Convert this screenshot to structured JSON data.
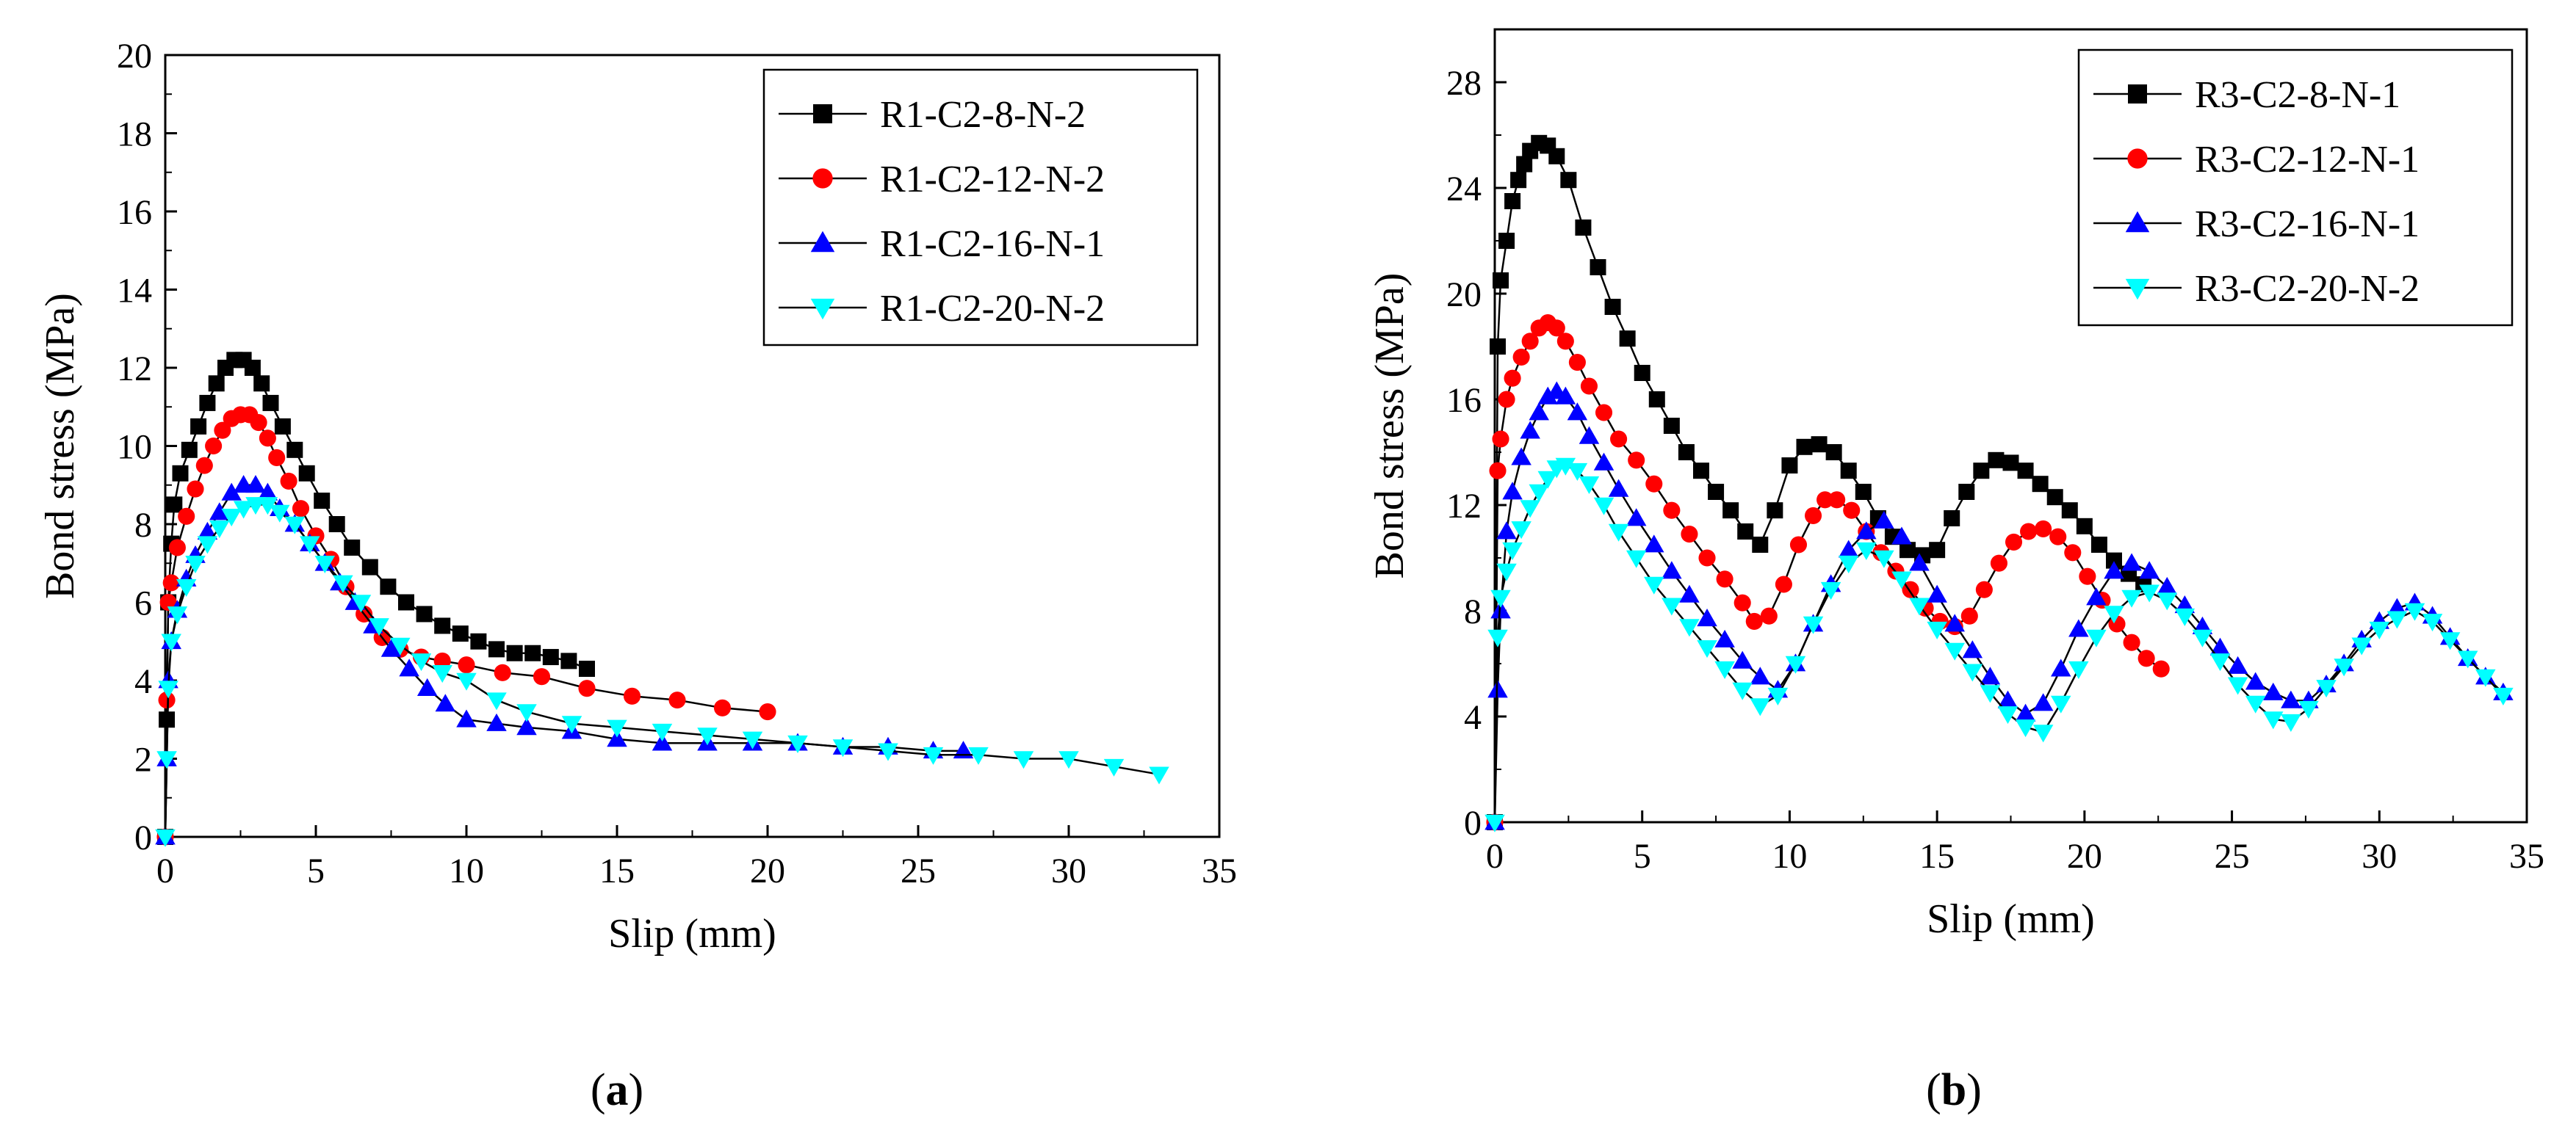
{
  "chart_data": [
    {
      "type": "line",
      "caption": "(a)",
      "caption_letter": "a",
      "xlabel": "Slip (mm)",
      "ylabel": "Bond stress (MPa)",
      "xlim": [
        0,
        35
      ],
      "ylim": [
        0,
        20
      ],
      "xticks": [
        0,
        5,
        10,
        15,
        20,
        25,
        30,
        35
      ],
      "yticks": [
        0,
        2,
        4,
        6,
        8,
        10,
        12,
        14,
        16,
        18,
        20
      ],
      "grid": false,
      "legend_position": "top-right",
      "series": [
        {
          "name": "R1-C2-8-N-2",
          "marker": "square",
          "color": "#000000",
          "x": [
            0,
            0.05,
            0.1,
            0.2,
            0.3,
            0.5,
            0.8,
            1.1,
            1.4,
            1.7,
            2.0,
            2.3,
            2.6,
            2.9,
            3.2,
            3.5,
            3.9,
            4.3,
            4.7,
            5.2,
            5.7,
            6.2,
            6.8,
            7.4,
            8.0,
            8.6,
            9.2,
            9.8,
            10.4,
            11.0,
            11.6,
            12.2,
            12.8,
            13.4,
            14.0
          ],
          "y": [
            0,
            3.0,
            6.0,
            7.5,
            8.5,
            9.3,
            9.9,
            10.5,
            11.1,
            11.6,
            12.0,
            12.2,
            12.2,
            12.0,
            11.6,
            11.1,
            10.5,
            9.9,
            9.3,
            8.6,
            8.0,
            7.4,
            6.9,
            6.4,
            6.0,
            5.7,
            5.4,
            5.2,
            5.0,
            4.8,
            4.7,
            4.7,
            4.6,
            4.5,
            4.3
          ]
        },
        {
          "name": "R1-C2-12-N-2",
          "marker": "circle",
          "color": "#ff0000",
          "x": [
            0,
            0.05,
            0.1,
            0.2,
            0.4,
            0.7,
            1.0,
            1.3,
            1.6,
            1.9,
            2.2,
            2.5,
            2.8,
            3.1,
            3.4,
            3.7,
            4.1,
            4.5,
            5.0,
            5.5,
            6.0,
            6.6,
            7.2,
            7.8,
            8.5,
            9.2,
            10.0,
            11.2,
            12.5,
            14.0,
            15.5,
            17.0,
            18.5,
            20.0
          ],
          "y": [
            0,
            3.5,
            6.0,
            6.5,
            7.4,
            8.2,
            8.9,
            9.5,
            10.0,
            10.4,
            10.7,
            10.8,
            10.8,
            10.6,
            10.2,
            9.7,
            9.1,
            8.4,
            7.7,
            7.1,
            6.4,
            5.7,
            5.1,
            4.8,
            4.6,
            4.5,
            4.4,
            4.2,
            4.1,
            3.8,
            3.6,
            3.5,
            3.3,
            3.2
          ]
        },
        {
          "name": "R1-C2-16-N-1",
          "marker": "triangle-up",
          "color": "#0000ff",
          "x": [
            0,
            0.05,
            0.1,
            0.2,
            0.4,
            0.7,
            1.0,
            1.4,
            1.8,
            2.2,
            2.6,
            3.0,
            3.4,
            3.8,
            4.3,
            4.8,
            5.3,
            5.8,
            6.3,
            6.9,
            7.5,
            8.1,
            8.7,
            9.3,
            10.0,
            11.0,
            12.0,
            13.5,
            15.0,
            16.5,
            18.0,
            19.5,
            21.0,
            22.5,
            24.0,
            25.5,
            26.5
          ],
          "y": [
            0,
            2.0,
            4.0,
            5.0,
            5.8,
            6.6,
            7.2,
            7.8,
            8.3,
            8.8,
            9.0,
            9.0,
            8.8,
            8.4,
            8.0,
            7.5,
            7.0,
            6.5,
            6.0,
            5.4,
            4.8,
            4.3,
            3.8,
            3.4,
            3.0,
            2.9,
            2.8,
            2.7,
            2.5,
            2.4,
            2.4,
            2.4,
            2.4,
            2.3,
            2.3,
            2.2,
            2.2
          ]
        },
        {
          "name": "R1-C2-20-N-2",
          "marker": "triangle-down",
          "color": "#00ffff",
          "x": [
            0,
            0.05,
            0.1,
            0.2,
            0.4,
            0.7,
            1.0,
            1.4,
            1.8,
            2.2,
            2.6,
            3.0,
            3.4,
            3.8,
            4.3,
            4.8,
            5.3,
            5.9,
            6.5,
            7.1,
            7.8,
            8.5,
            9.2,
            10.0,
            11.0,
            12.0,
            13.5,
            15.0,
            16.5,
            18.0,
            19.5,
            21.0,
            22.5,
            24.0,
            25.5,
            27.0,
            28.5,
            30.0,
            31.5,
            33.0
          ],
          "y": [
            0,
            2.0,
            3.8,
            5.0,
            5.7,
            6.4,
            7.0,
            7.5,
            7.9,
            8.2,
            8.4,
            8.5,
            8.5,
            8.3,
            8.0,
            7.5,
            7.0,
            6.5,
            6.0,
            5.4,
            4.9,
            4.5,
            4.2,
            4.0,
            3.5,
            3.2,
            2.9,
            2.8,
            2.7,
            2.6,
            2.5,
            2.4,
            2.3,
            2.2,
            2.1,
            2.1,
            2.0,
            2.0,
            1.8,
            1.6
          ]
        }
      ]
    },
    {
      "type": "line",
      "caption": "(b)",
      "caption_letter": "b",
      "xlabel": "Slip (mm)",
      "ylabel": "Bond stress (MPa)",
      "xlim": [
        0,
        35
      ],
      "ylim": [
        0,
        30
      ],
      "xticks": [
        0,
        5,
        10,
        15,
        20,
        25,
        30,
        35
      ],
      "yticks": [
        0,
        4,
        8,
        12,
        16,
        20,
        24,
        28
      ],
      "grid": false,
      "legend_position": "top-right",
      "series": [
        {
          "name": "R3-C2-8-N-1",
          "marker": "square",
          "color": "#000000",
          "x": [
            0,
            0.1,
            0.2,
            0.4,
            0.6,
            0.8,
            1.0,
            1.2,
            1.5,
            1.8,
            2.1,
            2.5,
            3.0,
            3.5,
            4.0,
            4.5,
            5.0,
            5.5,
            6.0,
            6.5,
            7.0,
            7.5,
            8.0,
            8.5,
            9.0,
            9.5,
            10.0,
            10.5,
            11.0,
            11.5,
            12.0,
            12.5,
            13.0,
            13.5,
            14.0,
            14.5,
            15.0,
            15.5,
            16.0,
            16.5,
            17.0,
            17.5,
            18.0,
            18.5,
            19.0,
            19.5,
            20.0,
            20.5,
            21.0,
            21.5,
            22.0
          ],
          "y": [
            0,
            18.0,
            20.5,
            22.0,
            23.5,
            24.3,
            24.9,
            25.4,
            25.7,
            25.6,
            25.2,
            24.3,
            22.5,
            21.0,
            19.5,
            18.3,
            17.0,
            16.0,
            15.0,
            14.0,
            13.3,
            12.5,
            11.8,
            11.0,
            10.5,
            11.8,
            13.5,
            14.2,
            14.3,
            14.0,
            13.3,
            12.5,
            11.5,
            10.8,
            10.3,
            10.1,
            10.3,
            11.5,
            12.5,
            13.3,
            13.7,
            13.6,
            13.3,
            12.8,
            12.3,
            11.8,
            11.2,
            10.5,
            9.9,
            9.4,
            9.0
          ]
        },
        {
          "name": "R3-C2-12-N-1",
          "marker": "circle",
          "color": "#ff0000",
          "x": [
            0,
            0.1,
            0.2,
            0.4,
            0.6,
            0.9,
            1.2,
            1.5,
            1.8,
            2.1,
            2.4,
            2.8,
            3.2,
            3.7,
            4.2,
            4.8,
            5.4,
            6.0,
            6.6,
            7.2,
            7.8,
            8.4,
            8.8,
            9.3,
            9.8,
            10.3,
            10.8,
            11.2,
            11.6,
            12.1,
            12.6,
            13.1,
            13.6,
            14.1,
            14.6,
            15.1,
            15.6,
            16.1,
            16.6,
            17.1,
            17.6,
            18.1,
            18.6,
            19.1,
            19.6,
            20.1,
            20.6,
            21.1,
            21.6,
            22.1,
            22.6
          ],
          "y": [
            0,
            13.3,
            14.5,
            16.0,
            16.8,
            17.6,
            18.2,
            18.7,
            18.9,
            18.7,
            18.2,
            17.4,
            16.5,
            15.5,
            14.5,
            13.7,
            12.8,
            11.8,
            10.9,
            10.0,
            9.2,
            8.3,
            7.6,
            7.8,
            9.0,
            10.5,
            11.6,
            12.2,
            12.2,
            11.8,
            11.0,
            10.2,
            9.5,
            8.8,
            8.1,
            7.6,
            7.4,
            7.8,
            8.8,
            9.8,
            10.6,
            11.0,
            11.1,
            10.8,
            10.2,
            9.3,
            8.4,
            7.5,
            6.8,
            6.2,
            5.8
          ]
        },
        {
          "name": "R3-C2-16-N-1",
          "marker": "triangle-up",
          "color": "#0000ff",
          "x": [
            0,
            0.1,
            0.2,
            0.4,
            0.6,
            0.9,
            1.2,
            1.5,
            1.8,
            2.1,
            2.4,
            2.8,
            3.2,
            3.7,
            4.2,
            4.8,
            5.4,
            6.0,
            6.6,
            7.2,
            7.8,
            8.4,
            9.0,
            9.6,
            10.2,
            10.8,
            11.4,
            12.0,
            12.6,
            13.2,
            13.8,
            14.4,
            15.0,
            15.6,
            16.2,
            16.8,
            17.4,
            18.0,
            18.6,
            19.2,
            19.8,
            20.4,
            21.0,
            21.6,
            22.2,
            22.8,
            23.4,
            24.0,
            24.6,
            25.2,
            25.8,
            26.4,
            27.0,
            27.6,
            28.2,
            28.8,
            29.4,
            30.0,
            30.6,
            31.2,
            31.8,
            32.4,
            33.0,
            33.6,
            34.2
          ],
          "y": [
            0,
            5.0,
            8.0,
            11.0,
            12.5,
            13.8,
            14.8,
            15.5,
            16.1,
            16.3,
            16.1,
            15.5,
            14.6,
            13.6,
            12.6,
            11.5,
            10.5,
            9.5,
            8.6,
            7.7,
            6.9,
            6.1,
            5.5,
            5.0,
            6.0,
            7.5,
            9.0,
            10.3,
            11.0,
            11.4,
            10.8,
            9.8,
            8.6,
            7.5,
            6.5,
            5.5,
            4.6,
            4.1,
            4.5,
            5.8,
            7.3,
            8.5,
            9.5,
            9.8,
            9.5,
            8.9,
            8.2,
            7.4,
            6.6,
            5.9,
            5.3,
            4.9,
            4.6,
            4.6,
            5.2,
            6.0,
            6.9,
            7.6,
            8.1,
            8.3,
            7.8,
            7.0,
            6.2,
            5.5,
            4.9
          ]
        },
        {
          "name": "R3-C2-20-N-2",
          "marker": "triangle-down",
          "color": "#00ffff",
          "x": [
            0,
            0.1,
            0.2,
            0.4,
            0.6,
            0.9,
            1.2,
            1.5,
            1.8,
            2.1,
            2.4,
            2.8,
            3.2,
            3.7,
            4.2,
            4.8,
            5.4,
            6.0,
            6.6,
            7.2,
            7.8,
            8.4,
            9.0,
            9.6,
            10.2,
            10.8,
            11.4,
            12.0,
            12.6,
            13.2,
            13.8,
            14.4,
            15.0,
            15.6,
            16.2,
            16.8,
            17.4,
            18.0,
            18.6,
            19.2,
            19.8,
            20.4,
            21.0,
            21.6,
            22.2,
            22.8,
            23.4,
            24.0,
            24.6,
            25.2,
            25.8,
            26.4,
            27.0,
            27.6,
            28.2,
            28.8,
            29.4,
            30.0,
            30.6,
            31.2,
            31.8,
            32.4,
            33.0,
            33.6,
            34.2
          ],
          "y": [
            0,
            7.0,
            8.5,
            9.5,
            10.3,
            11.1,
            11.9,
            12.5,
            13.0,
            13.4,
            13.5,
            13.3,
            12.8,
            12.0,
            11.0,
            10.0,
            9.0,
            8.2,
            7.4,
            6.6,
            5.8,
            5.0,
            4.4,
            4.8,
            6.0,
            7.5,
            8.8,
            9.8,
            10.3,
            10.0,
            9.2,
            8.2,
            7.3,
            6.5,
            5.7,
            4.9,
            4.1,
            3.6,
            3.4,
            4.5,
            5.8,
            7.0,
            7.9,
            8.5,
            8.7,
            8.4,
            7.8,
            7.0,
            6.1,
            5.2,
            4.5,
            3.9,
            3.8,
            4.3,
            5.1,
            5.9,
            6.7,
            7.3,
            7.7,
            8.0,
            7.6,
            6.9,
            6.2,
            5.5,
            4.8
          ]
        }
      ]
    }
  ]
}
